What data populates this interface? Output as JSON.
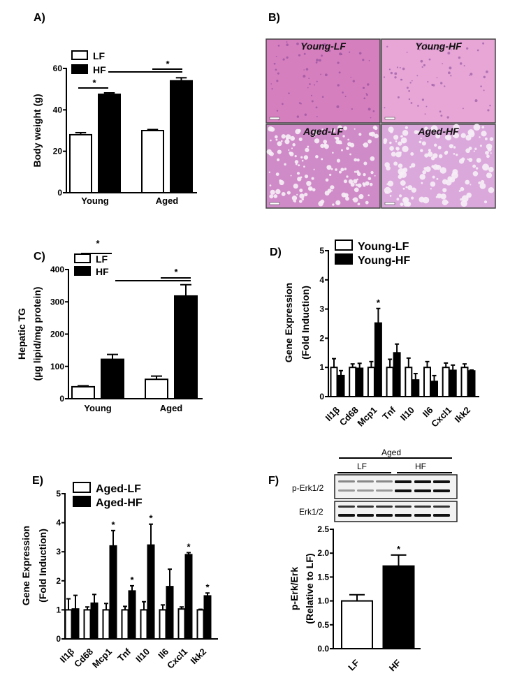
{
  "panels": {
    "A": "A)",
    "B": "B)",
    "C": "C)",
    "D": "D)",
    "E": "E)",
    "F": "F)"
  },
  "histology": {
    "tiles": [
      "Young-LF",
      "Young-HF",
      "Aged-LF",
      "Aged-HF"
    ],
    "colors": {
      "young_lf": "#d67fbf",
      "young_hf": "#e7a6d6",
      "aged_lf": "#cf8bc8",
      "aged_hf": "#dba8dc"
    }
  },
  "blot": {
    "group_label": "Aged",
    "lanes": [
      "LF",
      "HF"
    ],
    "rows": [
      "p-Erk1/2",
      "Erk1/2"
    ]
  },
  "chart_data": [
    {
      "panel": "A",
      "type": "bar",
      "categories": [
        "Young",
        "Aged"
      ],
      "series": [
        {
          "name": "LF",
          "color": "#ffffff",
          "values": [
            28,
            30
          ],
          "errors": [
            1,
            0.5
          ]
        },
        {
          "name": "HF",
          "color": "#000000",
          "values": [
            47.5,
            54
          ],
          "errors": [
            0.7,
            1.5
          ]
        }
      ],
      "ylabel": [
        "Body weight (g)"
      ],
      "ylim": [
        0,
        60
      ],
      "yticks": [
        "0",
        "20",
        "40",
        "60"
      ],
      "significance": [
        "*",
        "*"
      ],
      "legend": "top-left",
      "grid": false
    },
    {
      "panel": "C",
      "type": "bar",
      "categories": [
        "Young",
        "Aged"
      ],
      "series": [
        {
          "name": "LF",
          "color": "#ffffff",
          "values": [
            37,
            60
          ],
          "errors": [
            3,
            10
          ]
        },
        {
          "name": "HF",
          "color": "#000000",
          "values": [
            122,
            318
          ],
          "errors": [
            15,
            35
          ]
        }
      ],
      "ylabel": [
        "Hepatic TG",
        "(µg lipid/mg protein)"
      ],
      "ylim": [
        0,
        400
      ],
      "yticks": [
        "0",
        "100",
        "200",
        "300",
        "400"
      ],
      "significance": [
        "*",
        "*"
      ],
      "legend": "top-left",
      "grid": false
    },
    {
      "panel": "D",
      "type": "bar",
      "categories": [
        "Il1β",
        "Cd68",
        "Mcp1",
        "Tnf",
        "Il10",
        "Il6",
        "Cxcl1",
        "Ikk2"
      ],
      "series": [
        {
          "name": "Young-LF",
          "color": "#ffffff",
          "values": [
            1,
            1,
            1,
            1,
            1,
            1,
            1,
            1
          ],
          "errors": [
            0.3,
            0.12,
            0.2,
            0.28,
            0.32,
            0.2,
            0.15,
            0.12
          ]
        },
        {
          "name": "Young-HF",
          "color": "#000000",
          "values": [
            0.72,
            0.97,
            2.52,
            1.5,
            0.57,
            0.52,
            0.9,
            0.88
          ],
          "errors": [
            0.17,
            0.17,
            0.5,
            0.3,
            0.22,
            0.2,
            0.18,
            0.03
          ]
        }
      ],
      "ylabel": [
        "Gene Expression",
        "(Fold Induction)"
      ],
      "ylim": [
        0,
        5
      ],
      "yticks": [
        "0",
        "1",
        "2",
        "3",
        "4",
        "5"
      ],
      "stars": [
        null,
        null,
        "*",
        null,
        null,
        null,
        null,
        null
      ],
      "legend": "top-left",
      "grid": false
    },
    {
      "panel": "E",
      "type": "bar",
      "categories": [
        "Il1β",
        "Cd68",
        "Mcp1",
        "Tnf",
        "Il10",
        "Il6",
        "Cxcl1",
        "Ikk2"
      ],
      "series": [
        {
          "name": "Aged-LF",
          "color": "#ffffff",
          "values": [
            1,
            1,
            1,
            1,
            1,
            1,
            1.03,
            1
          ],
          "errors": [
            0.38,
            0.1,
            0.22,
            0.12,
            0.28,
            0.17,
            0.07,
            0.02
          ]
        },
        {
          "name": "Aged-HF",
          "color": "#000000",
          "values": [
            1.03,
            1.23,
            3.2,
            1.65,
            3.23,
            1.8,
            2.9,
            1.48
          ],
          "errors": [
            0.47,
            0.3,
            0.53,
            0.18,
            0.72,
            0.6,
            0.07,
            0.1
          ]
        }
      ],
      "ylabel": [
        "Gene Expression",
        "(Fold Induction)"
      ],
      "ylim": [
        0,
        5
      ],
      "yticks": [
        "0",
        "1",
        "2",
        "3",
        "4",
        "5"
      ],
      "stars": [
        null,
        null,
        "*",
        "*",
        "*",
        null,
        "*",
        "*"
      ],
      "legend": "top-left",
      "grid": false
    },
    {
      "panel": "F",
      "type": "bar",
      "categories": [
        "LF",
        "HF"
      ],
      "series": [
        {
          "colors": [
            "#ffffff",
            "#000000"
          ],
          "values": [
            1.0,
            1.73
          ],
          "errors": [
            0.13,
            0.23
          ]
        }
      ],
      "ylabel": [
        "p-Erk/Erk",
        "(Relative to LF)"
      ],
      "ylim": [
        0,
        2.5
      ],
      "yticks": [
        "0.0",
        "0.5",
        "1.0",
        "1.5",
        "2.0",
        "2.5"
      ],
      "stars": [
        null,
        "*"
      ],
      "grid": false
    }
  ]
}
